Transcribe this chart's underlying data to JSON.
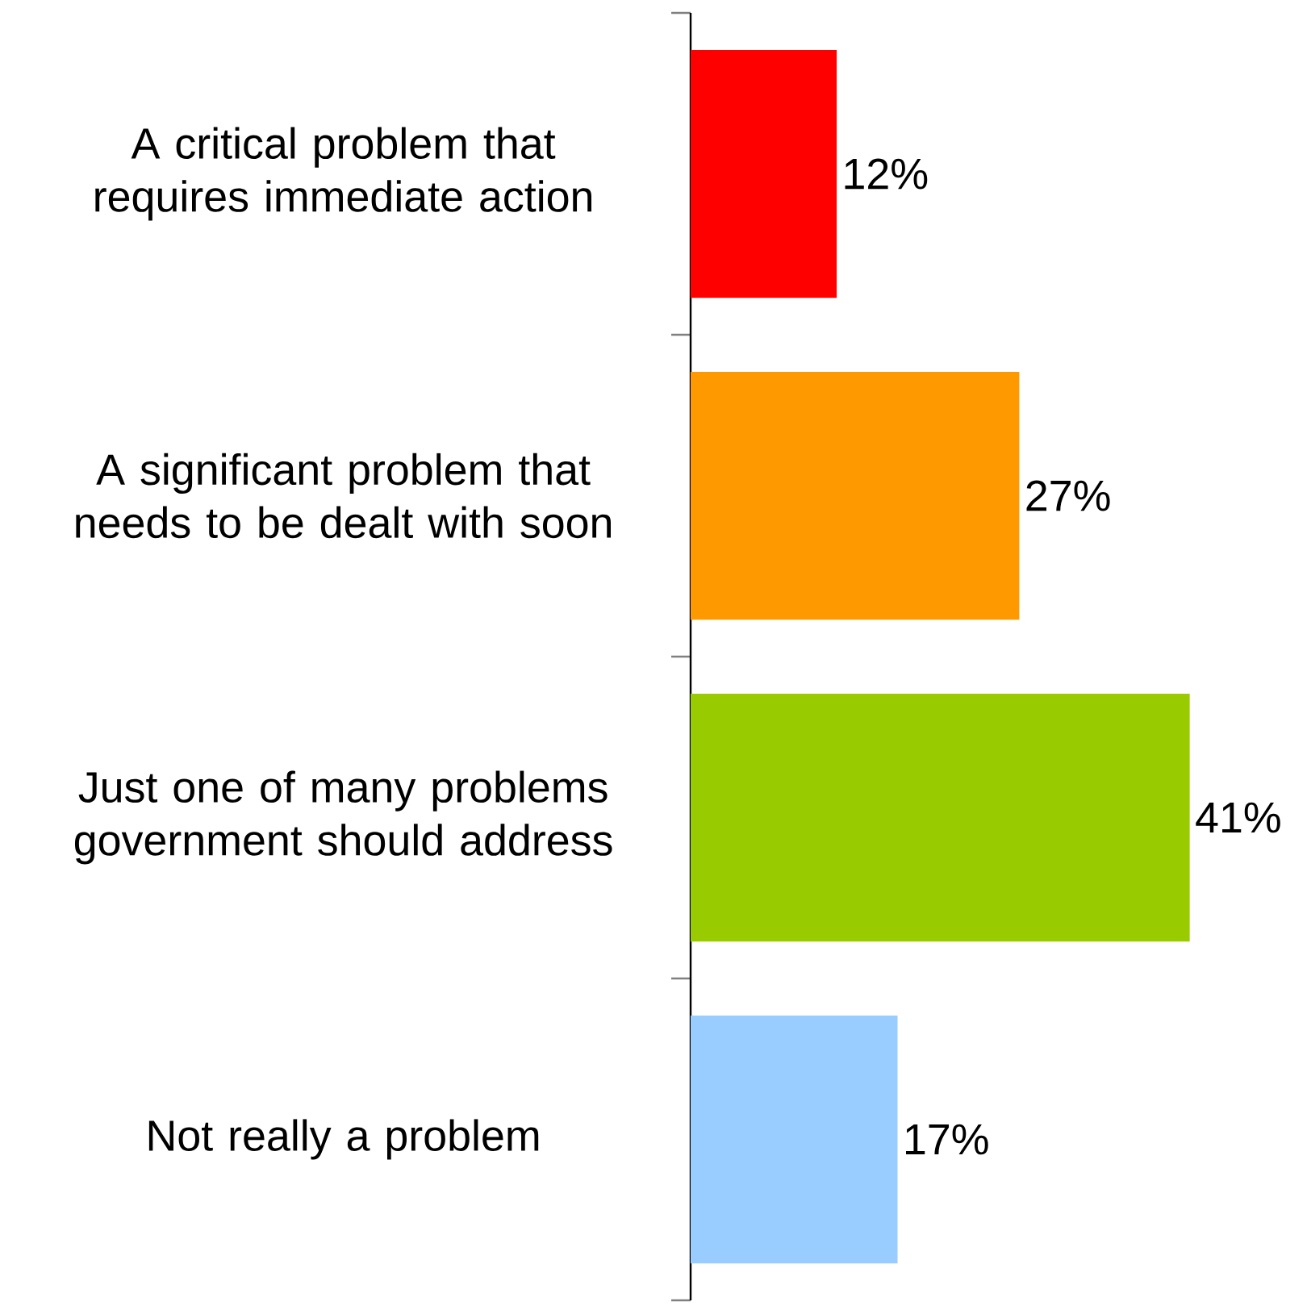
{
  "chart_data": {
    "type": "bar",
    "orientation": "horizontal",
    "categories": [
      "A critical problem that requires immediate action",
      "A significant problem that needs to be dealt with soon",
      "Just one of many problems government should address",
      "Not really a problem"
    ],
    "values": [
      12,
      27,
      41,
      17
    ],
    "colors": [
      "#ff0000",
      "#ff9900",
      "#99cc00",
      "#99ccff"
    ],
    "value_labels": [
      "12%",
      "27%",
      "41%",
      "17%"
    ]
  }
}
